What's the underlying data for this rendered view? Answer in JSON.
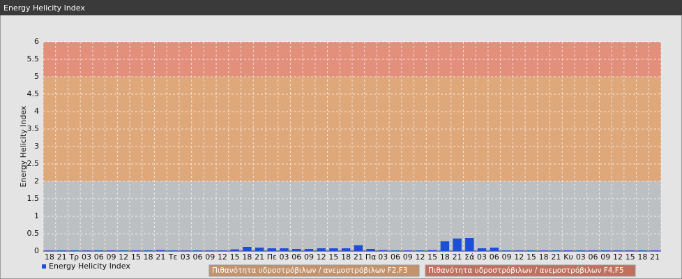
{
  "chart_data": {
    "type": "bar",
    "title": "Energy Helicity Index",
    "y_label": "Energy Helicity Index",
    "categories": [
      "18",
      "21",
      "Τρ",
      "03",
      "06",
      "09",
      "12",
      "15",
      "18",
      "21",
      "Τε",
      "03",
      "06",
      "09",
      "12",
      "15",
      "18",
      "21",
      "Πε",
      "03",
      "06",
      "09",
      "12",
      "15",
      "18",
      "21",
      "Πα",
      "03",
      "06",
      "09",
      "12",
      "15",
      "18",
      "21",
      "Σά",
      "03",
      "06",
      "09",
      "12",
      "15",
      "18",
      "21",
      "Κυ",
      "03",
      "06",
      "09",
      "12",
      "15",
      "18",
      "21"
    ],
    "series": [
      {
        "name": "Energy Helicity Index",
        "color": "#1a4fd6",
        "values": [
          0.02,
          0.02,
          0.02,
          0.02,
          0.02,
          0.02,
          0.02,
          0.02,
          0.02,
          0.03,
          0.02,
          0.02,
          0.02,
          0.02,
          0.02,
          0.05,
          0.12,
          0.1,
          0.08,
          0.08,
          0.06,
          0.06,
          0.08,
          0.08,
          0.08,
          0.17,
          0.06,
          0.03,
          0.02,
          0.02,
          0.02,
          0.03,
          0.28,
          0.36,
          0.38,
          0.08,
          0.1,
          0.02,
          0.02,
          0.02,
          0.02,
          0.02,
          0.02,
          0.02,
          0.02,
          0.02,
          0.02,
          0.02,
          0.02,
          0.02
        ]
      }
    ],
    "ylim": [
      0,
      6
    ],
    "yticks": [
      0,
      0.5,
      1,
      1.5,
      2,
      2.5,
      3,
      3.5,
      4,
      4.5,
      5,
      5.5,
      6
    ],
    "grid": true,
    "bands": [
      {
        "range": [
          0,
          2
        ],
        "color": "#bdc0c3"
      },
      {
        "range": [
          2,
          5
        ],
        "color": "#dfa87b",
        "legend_color": "#c4936c",
        "label": "Πιθανότητα υδροστρόβιλων / ανεμοστρόβιλων F2,F3"
      },
      {
        "range": [
          5,
          6
        ],
        "color": "#e28f7c",
        "legend_color": "#c0705f",
        "label": "Πιθανότητα υδροστρόβιλων / ανεμοστρόβιλων F4,F5"
      }
    ]
  }
}
